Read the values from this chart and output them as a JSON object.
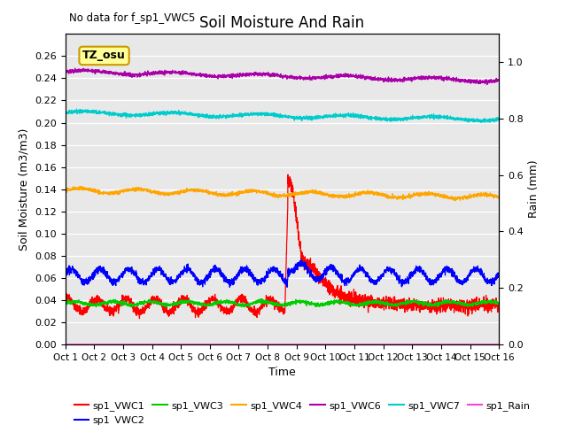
{
  "title": "Soil Moisture And Rain",
  "xlabel": "Time",
  "ylabel_left": "Soil Moisture (m3/m3)",
  "ylabel_right": "Rain (mm)",
  "annotation_text": "No data for f_sp1_VWC5",
  "watermark": "TZ_osu",
  "x_tick_labels": [
    "Oct 1",
    "Oct 2",
    "Oct 3",
    "Oct 4",
    "Oct 5",
    "Oct 6",
    "Oct 7",
    "Oct 8",
    "Oct 9",
    "Oct 10",
    "Oct 11",
    "Oct 12",
    "Oct 13",
    "Oct 14",
    "Oct 15",
    "Oct 16"
  ],
  "ylim_left": [
    0.0,
    0.28
  ],
  "ylim_right": [
    0.0,
    1.1
  ],
  "yticks_left": [
    0.0,
    0.02,
    0.04,
    0.06,
    0.08,
    0.1,
    0.12,
    0.14,
    0.16,
    0.18,
    0.2,
    0.22,
    0.24,
    0.26
  ],
  "yticks_right": [
    0.0,
    0.2,
    0.4,
    0.6,
    0.8,
    1.0
  ],
  "background_color": "#e8e8e8",
  "vwc1_color": "#ff0000",
  "vwc2_color": "#0000ff",
  "vwc3_color": "#00cc00",
  "vwc4_color": "#ffa500",
  "vwc6_color": "#aa00aa",
  "vwc7_color": "#00cccc",
  "rain_color": "#ff44cc",
  "legend_entries": [
    "sp1_VWC1",
    "sp1_VWC2",
    "sp1_VWC3",
    "sp1_VWC4",
    "sp1_VWC6",
    "sp1_VWC7",
    "sp1_Rain"
  ]
}
